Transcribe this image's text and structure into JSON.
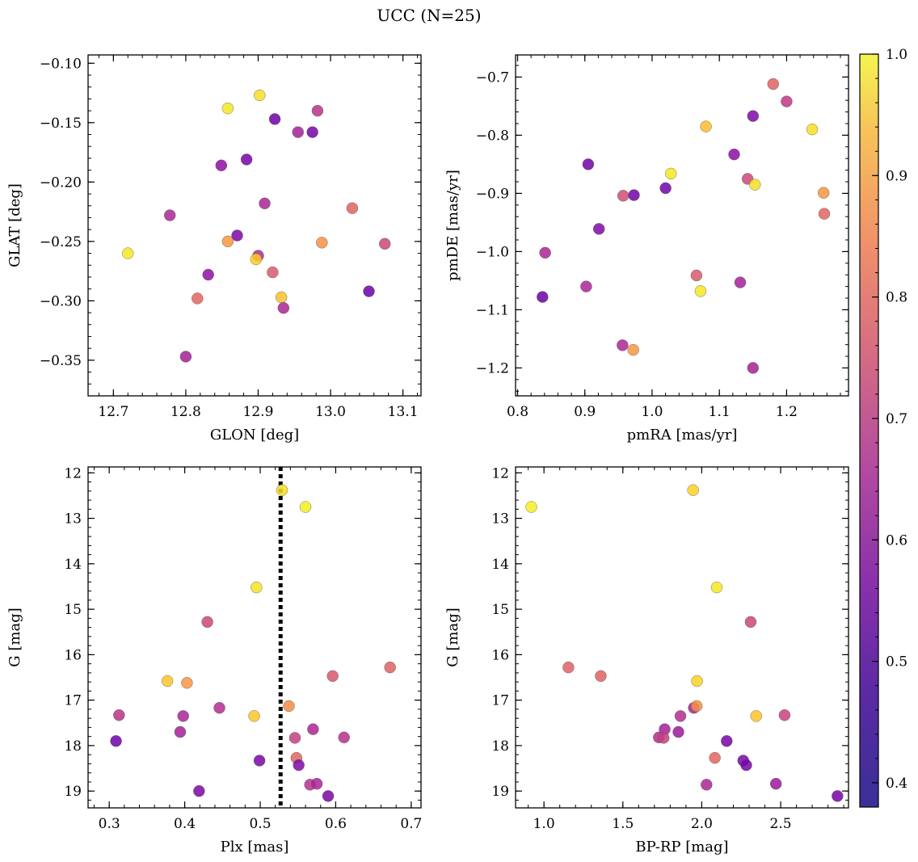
{
  "figure": {
    "title": "UCC (N=25)",
    "colormap": "plasma",
    "colorbar": {
      "min": 0.38,
      "max": 1.0,
      "tick_labels": [
        "0.4",
        "0.5",
        "0.6",
        "0.7",
        "0.8",
        "0.9",
        "1.0"
      ],
      "ticks": [
        0.4,
        0.5,
        0.6,
        0.7,
        0.8,
        0.9,
        1.0
      ]
    }
  },
  "chart_data": [
    {
      "type": "scatter",
      "name": "glon-glat",
      "xlabel": "GLON [deg]",
      "ylabel": "GLAT [deg]",
      "xlim": [
        12.665,
        13.125
      ],
      "ylim": [
        -0.38,
        -0.093
      ],
      "y_inverted": false,
      "xticks": [
        12.7,
        12.8,
        12.9,
        13.0,
        13.1
      ],
      "xtick_labels": [
        "12.7",
        "12.8",
        "12.9",
        "13.0",
        "13.1"
      ],
      "yticks": [
        -0.35,
        -0.3,
        -0.25,
        -0.2,
        -0.15,
        -0.1
      ],
      "ytick_labels": [
        "−0.35",
        "−0.30",
        "−0.25",
        "−0.20",
        "−0.15",
        "−0.10"
      ],
      "points": [
        {
          "x": 12.902,
          "y": -0.127,
          "c": 0.95
        },
        {
          "x": 12.858,
          "y": -0.138,
          "c": 0.97
        },
        {
          "x": 12.982,
          "y": -0.14,
          "c": 0.57
        },
        {
          "x": 12.923,
          "y": -0.147,
          "c": 0.4
        },
        {
          "x": 12.955,
          "y": -0.158,
          "c": 0.52
        },
        {
          "x": 12.975,
          "y": -0.158,
          "c": 0.42
        },
        {
          "x": 12.884,
          "y": -0.181,
          "c": 0.42
        },
        {
          "x": 12.849,
          "y": -0.186,
          "c": 0.47
        },
        {
          "x": 12.909,
          "y": -0.218,
          "c": 0.53
        },
        {
          "x": 13.03,
          "y": -0.222,
          "c": 0.69
        },
        {
          "x": 12.778,
          "y": -0.228,
          "c": 0.53
        },
        {
          "x": 12.871,
          "y": -0.245,
          "c": 0.43
        },
        {
          "x": 12.858,
          "y": -0.25,
          "c": 0.81
        },
        {
          "x": 12.988,
          "y": -0.251,
          "c": 0.8
        },
        {
          "x": 13.075,
          "y": -0.252,
          "c": 0.62
        },
        {
          "x": 12.72,
          "y": -0.26,
          "c": 0.97
        },
        {
          "x": 12.9,
          "y": -0.262,
          "c": 0.55
        },
        {
          "x": 12.897,
          "y": -0.265,
          "c": 0.92
        },
        {
          "x": 12.92,
          "y": -0.276,
          "c": 0.67
        },
        {
          "x": 12.831,
          "y": -0.278,
          "c": 0.47
        },
        {
          "x": 12.816,
          "y": -0.298,
          "c": 0.7
        },
        {
          "x": 12.932,
          "y": -0.297,
          "c": 0.9
        },
        {
          "x": 12.935,
          "y": -0.306,
          "c": 0.53
        },
        {
          "x": 13.053,
          "y": -0.292,
          "c": 0.4
        },
        {
          "x": 12.8,
          "y": -0.347,
          "c": 0.52
        }
      ]
    },
    {
      "type": "scatter",
      "name": "pmra-pmde",
      "xlabel": "pmRA [mas/yr]",
      "ylabel": "pmDE [mas/yr]",
      "xlim": [
        0.797,
        1.292
      ],
      "ylim": [
        -1.248,
        -0.662
      ],
      "y_inverted": false,
      "xticks": [
        0.8,
        0.9,
        1.0,
        1.1,
        1.2
      ],
      "xtick_labels": [
        "0.8",
        "0.9",
        "1.0",
        "1.1",
        "1.2"
      ],
      "yticks": [
        -1.2,
        -1.1,
        -1.0,
        -0.9,
        -0.8,
        -0.7
      ],
      "ytick_labels": [
        "−1.2",
        "−1.1",
        "−1.0",
        "−0.9",
        "−0.8",
        "−0.7"
      ],
      "points": [
        {
          "x": 1.18,
          "y": -0.712,
          "c": 0.69
        },
        {
          "x": 1.2,
          "y": -0.742,
          "c": 0.58
        },
        {
          "x": 1.15,
          "y": -0.767,
          "c": 0.44
        },
        {
          "x": 1.08,
          "y": -0.785,
          "c": 0.89
        },
        {
          "x": 1.238,
          "y": -0.79,
          "c": 0.95
        },
        {
          "x": 1.122,
          "y": -0.833,
          "c": 0.47
        },
        {
          "x": 0.905,
          "y": -0.85,
          "c": 0.41
        },
        {
          "x": 1.028,
          "y": -0.866,
          "c": 0.97
        },
        {
          "x": 1.142,
          "y": -0.875,
          "c": 0.62
        },
        {
          "x": 1.153,
          "y": -0.885,
          "c": 0.95
        },
        {
          "x": 1.02,
          "y": -0.891,
          "c": 0.41
        },
        {
          "x": 1.255,
          "y": -0.899,
          "c": 0.81
        },
        {
          "x": 0.957,
          "y": -0.904,
          "c": 0.64
        },
        {
          "x": 0.973,
          "y": -0.903,
          "c": 0.41
        },
        {
          "x": 1.256,
          "y": -0.935,
          "c": 0.7
        },
        {
          "x": 0.921,
          "y": -0.961,
          "c": 0.44
        },
        {
          "x": 0.841,
          "y": -1.002,
          "c": 0.53
        },
        {
          "x": 1.066,
          "y": -1.041,
          "c": 0.67
        },
        {
          "x": 1.131,
          "y": -1.053,
          "c": 0.52
        },
        {
          "x": 0.902,
          "y": -1.06,
          "c": 0.53
        },
        {
          "x": 1.072,
          "y": -1.068,
          "c": 0.97
        },
        {
          "x": 0.837,
          "y": -1.078,
          "c": 0.4
        },
        {
          "x": 0.956,
          "y": -1.161,
          "c": 0.53
        },
        {
          "x": 0.972,
          "y": -1.169,
          "c": 0.81
        },
        {
          "x": 1.15,
          "y": -1.2,
          "c": 0.52
        }
      ]
    },
    {
      "type": "scatter",
      "name": "plx-g",
      "xlabel": "Plx [mas]",
      "ylabel": "G [mag]",
      "xlim": [
        0.272,
        0.713
      ],
      "ylim": [
        19.37,
        11.87
      ],
      "y_inverted": true,
      "vline": {
        "x": 0.527,
        "style": "dotted"
      },
      "xticks": [
        0.3,
        0.4,
        0.5,
        0.6,
        0.7
      ],
      "xtick_labels": [
        "0.3",
        "0.4",
        "0.5",
        "0.6",
        "0.7"
      ],
      "yticks": [
        12,
        13,
        14,
        15,
        16,
        17,
        18,
        19
      ],
      "ytick_labels": [
        "12",
        "13",
        "14",
        "15",
        "16",
        "17",
        "18",
        "19"
      ],
      "points": [
        {
          "x": 0.529,
          "y": 12.38,
          "c": 0.95
        },
        {
          "x": 0.56,
          "y": 12.75,
          "c": 0.98
        },
        {
          "x": 0.495,
          "y": 14.52,
          "c": 0.96
        },
        {
          "x": 0.43,
          "y": 15.28,
          "c": 0.62
        },
        {
          "x": 0.672,
          "y": 16.28,
          "c": 0.69
        },
        {
          "x": 0.596,
          "y": 16.47,
          "c": 0.66
        },
        {
          "x": 0.377,
          "y": 16.58,
          "c": 0.91
        },
        {
          "x": 0.403,
          "y": 16.62,
          "c": 0.81
        },
        {
          "x": 0.446,
          "y": 17.17,
          "c": 0.55
        },
        {
          "x": 0.538,
          "y": 17.13,
          "c": 0.79
        },
        {
          "x": 0.313,
          "y": 17.33,
          "c": 0.57
        },
        {
          "x": 0.398,
          "y": 17.35,
          "c": 0.53
        },
        {
          "x": 0.492,
          "y": 17.35,
          "c": 0.91
        },
        {
          "x": 0.57,
          "y": 17.64,
          "c": 0.53
        },
        {
          "x": 0.394,
          "y": 17.7,
          "c": 0.52
        },
        {
          "x": 0.546,
          "y": 17.83,
          "c": 0.6
        },
        {
          "x": 0.611,
          "y": 17.82,
          "c": 0.56
        },
        {
          "x": 0.309,
          "y": 17.9,
          "c": 0.4
        },
        {
          "x": 0.548,
          "y": 18.27,
          "c": 0.7
        },
        {
          "x": 0.499,
          "y": 18.33,
          "c": 0.43
        },
        {
          "x": 0.551,
          "y": 18.43,
          "c": 0.44
        },
        {
          "x": 0.566,
          "y": 18.86,
          "c": 0.56
        },
        {
          "x": 0.575,
          "y": 18.84,
          "c": 0.53
        },
        {
          "x": 0.419,
          "y": 19.0,
          "c": 0.43
        },
        {
          "x": 0.59,
          "y": 19.11,
          "c": 0.43
        }
      ]
    },
    {
      "type": "scatter",
      "name": "bprp-g",
      "xlabel": "BP-RP [mag]",
      "ylabel": "G [mag]",
      "xlim": [
        0.82,
        2.93
      ],
      "ylim": [
        19.37,
        11.87
      ],
      "y_inverted": true,
      "xticks": [
        1.0,
        1.5,
        2.0,
        2.5
      ],
      "xtick_labels": [
        "1.0",
        "1.5",
        "2.0",
        "2.5"
      ],
      "yticks": [
        12,
        13,
        14,
        15,
        16,
        17,
        18,
        19
      ],
      "ytick_labels": [
        "12",
        "13",
        "14",
        "15",
        "16",
        "17",
        "18",
        "19"
      ],
      "points": [
        {
          "x": 1.945,
          "y": 12.38,
          "c": 0.93
        },
        {
          "x": 0.92,
          "y": 12.75,
          "c": 0.98
        },
        {
          "x": 2.095,
          "y": 14.52,
          "c": 0.97
        },
        {
          "x": 2.31,
          "y": 15.28,
          "c": 0.62
        },
        {
          "x": 1.155,
          "y": 16.28,
          "c": 0.69
        },
        {
          "x": 1.36,
          "y": 16.47,
          "c": 0.69
        },
        {
          "x": 1.97,
          "y": 16.58,
          "c": 0.93
        },
        {
          "x": 1.95,
          "y": 17.17,
          "c": 0.52
        },
        {
          "x": 1.968,
          "y": 17.13,
          "c": 0.8
        },
        {
          "x": 1.865,
          "y": 17.35,
          "c": 0.55
        },
        {
          "x": 2.345,
          "y": 17.35,
          "c": 0.91
        },
        {
          "x": 2.525,
          "y": 17.33,
          "c": 0.61
        },
        {
          "x": 1.765,
          "y": 17.64,
          "c": 0.52
        },
        {
          "x": 1.852,
          "y": 17.7,
          "c": 0.5
        },
        {
          "x": 1.728,
          "y": 17.82,
          "c": 0.55
        },
        {
          "x": 1.758,
          "y": 17.83,
          "c": 0.6
        },
        {
          "x": 2.158,
          "y": 17.9,
          "c": 0.42
        },
        {
          "x": 2.083,
          "y": 18.27,
          "c": 0.7
        },
        {
          "x": 2.263,
          "y": 18.33,
          "c": 0.43
        },
        {
          "x": 2.282,
          "y": 18.43,
          "c": 0.42
        },
        {
          "x": 2.03,
          "y": 18.86,
          "c": 0.53
        },
        {
          "x": 2.47,
          "y": 18.84,
          "c": 0.5
        },
        {
          "x": 2.86,
          "y": 19.11,
          "c": 0.42
        }
      ]
    }
  ]
}
